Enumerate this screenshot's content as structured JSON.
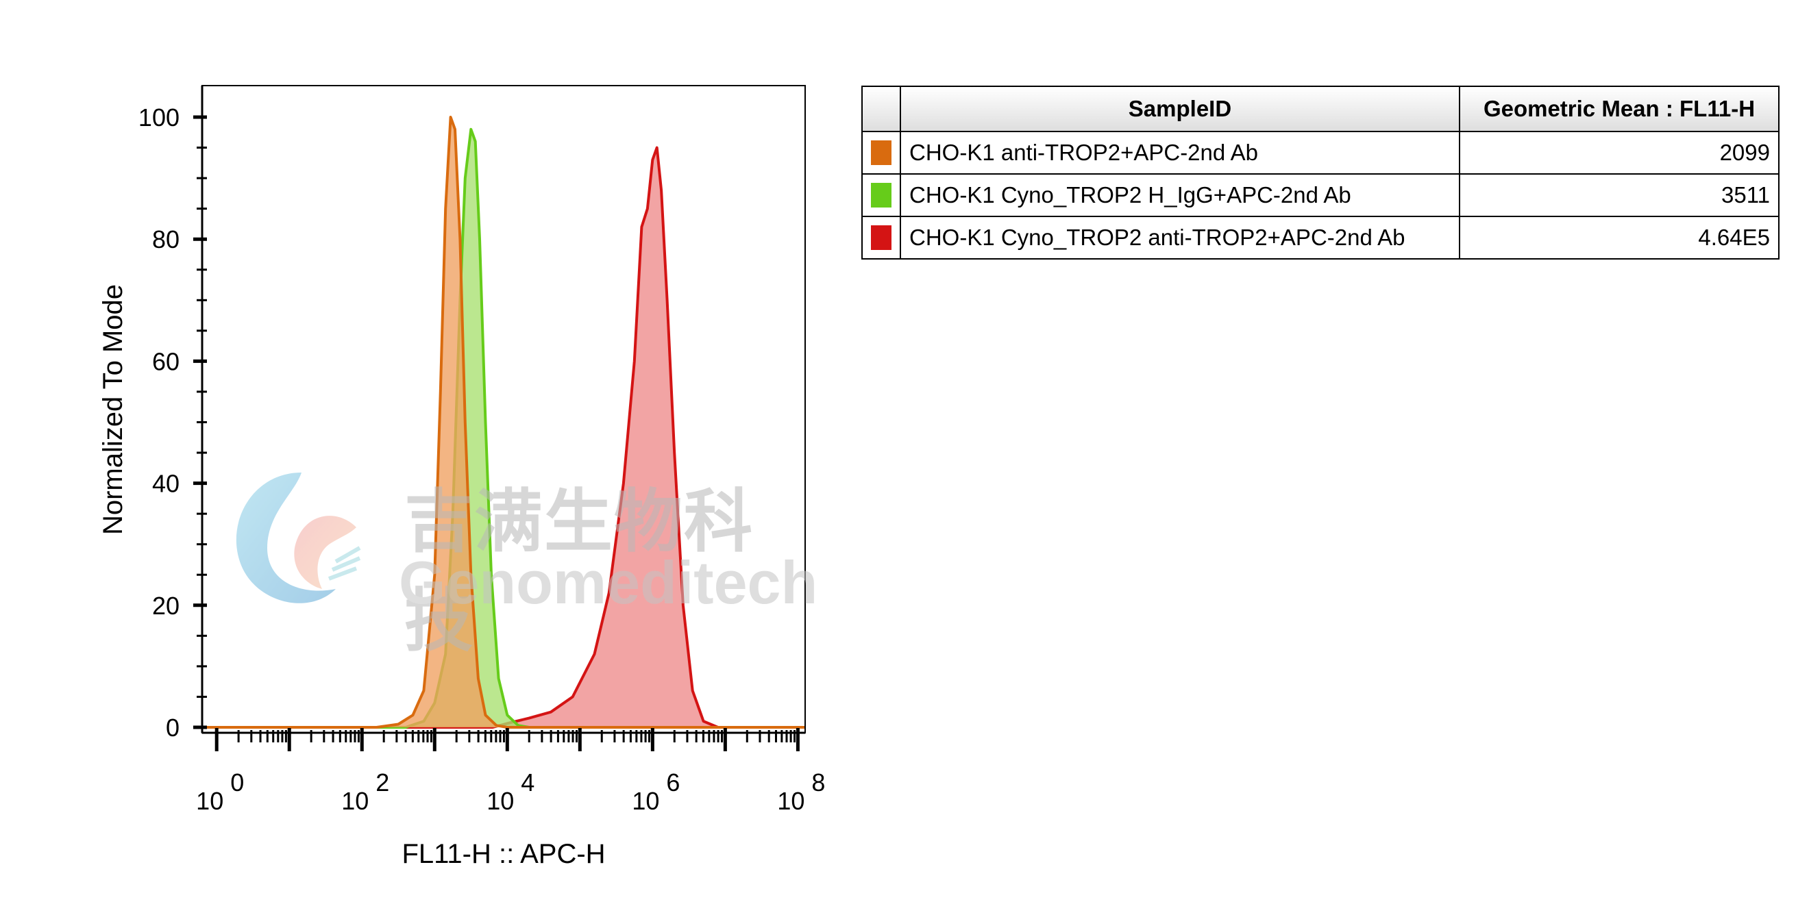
{
  "chart_data": {
    "type": "histogram",
    "xlabel": "FL11-H :: APC-H",
    "ylabel": "Normalized To Mode",
    "xscale": "log",
    "xlim_log10": [
      -0.2,
      8.1
    ],
    "ylim": [
      0,
      100
    ],
    "x_tick_labels": [
      {
        "base": "10",
        "exp": "0",
        "log10": 0
      },
      {
        "base": "10",
        "exp": "2",
        "log10": 2
      },
      {
        "base": "10",
        "exp": "4",
        "log10": 4
      },
      {
        "base": "10",
        "exp": "6",
        "log10": 6
      },
      {
        "base": "10",
        "exp": "8",
        "log10": 8
      }
    ],
    "y_ticks": [
      0,
      20,
      40,
      60,
      80,
      100
    ],
    "y_tick_labels": [
      "0",
      "20",
      "40",
      "60",
      "80",
      "100"
    ],
    "series": [
      {
        "name": "CHO-K1 anti-TROP2+APC-2nd Ab",
        "color": "#d96b0f",
        "fill": "#f0a060",
        "points": [
          [
            2.2,
            0
          ],
          [
            2.5,
            0.5
          ],
          [
            2.7,
            2
          ],
          [
            2.85,
            6
          ],
          [
            3.0,
            25
          ],
          [
            3.08,
            55
          ],
          [
            3.15,
            85
          ],
          [
            3.22,
            100
          ],
          [
            3.28,
            98
          ],
          [
            3.35,
            80
          ],
          [
            3.42,
            50
          ],
          [
            3.5,
            25
          ],
          [
            3.6,
            8
          ],
          [
            3.7,
            2
          ],
          [
            3.85,
            0.3
          ],
          [
            4.0,
            0
          ]
        ]
      },
      {
        "name": "CHO-K1 Cyno_TROP2 H_IgG+APC-2nd Ab",
        "color": "#66cc1a",
        "fill": "#a8e070",
        "points": [
          [
            2.6,
            0
          ],
          [
            2.85,
            1
          ],
          [
            3.0,
            4
          ],
          [
            3.15,
            12
          ],
          [
            3.25,
            35
          ],
          [
            3.35,
            70
          ],
          [
            3.42,
            90
          ],
          [
            3.5,
            98
          ],
          [
            3.56,
            96
          ],
          [
            3.62,
            80
          ],
          [
            3.7,
            50
          ],
          [
            3.78,
            25
          ],
          [
            3.88,
            8
          ],
          [
            4.0,
            2
          ],
          [
            4.15,
            0.3
          ],
          [
            4.3,
            0
          ]
        ]
      },
      {
        "name": "CHO-K1 Cyno_TROP2 anti-TROP2+APC-2nd Ab",
        "color": "#d41414",
        "fill": "#ee8a8a",
        "points": [
          [
            3.8,
            0
          ],
          [
            4.05,
            0.8
          ],
          [
            4.3,
            1.5
          ],
          [
            4.6,
            2.5
          ],
          [
            4.9,
            5
          ],
          [
            5.2,
            12
          ],
          [
            5.4,
            22
          ],
          [
            5.6,
            40
          ],
          [
            5.75,
            60
          ],
          [
            5.85,
            82
          ],
          [
            5.93,
            85
          ],
          [
            6.0,
            93
          ],
          [
            6.06,
            95
          ],
          [
            6.12,
            88
          ],
          [
            6.2,
            70
          ],
          [
            6.3,
            45
          ],
          [
            6.42,
            20
          ],
          [
            6.55,
            6
          ],
          [
            6.7,
            1
          ],
          [
            6.9,
            0
          ]
        ]
      }
    ],
    "table": {
      "columns": [
        "SampleID",
        "Geometric Mean : FL11-H"
      ],
      "rows": [
        {
          "color": "#d96b0f",
          "sample": "CHO-K1 anti-TROP2+APC-2nd Ab",
          "value": "2099"
        },
        {
          "color": "#66cc1a",
          "sample": "CHO-K1 Cyno_TROP2 H_IgG+APC-2nd Ab",
          "value": "3511"
        },
        {
          "color": "#d41414",
          "sample": "CHO-K1 Cyno_TROP2 anti-TROP2+APC-2nd Ab",
          "value": "4.64E5"
        }
      ]
    },
    "grid": false,
    "legend_placement": "right"
  },
  "watermark": {
    "chinese": "吉满生物科技",
    "english": "Genomeditech"
  }
}
